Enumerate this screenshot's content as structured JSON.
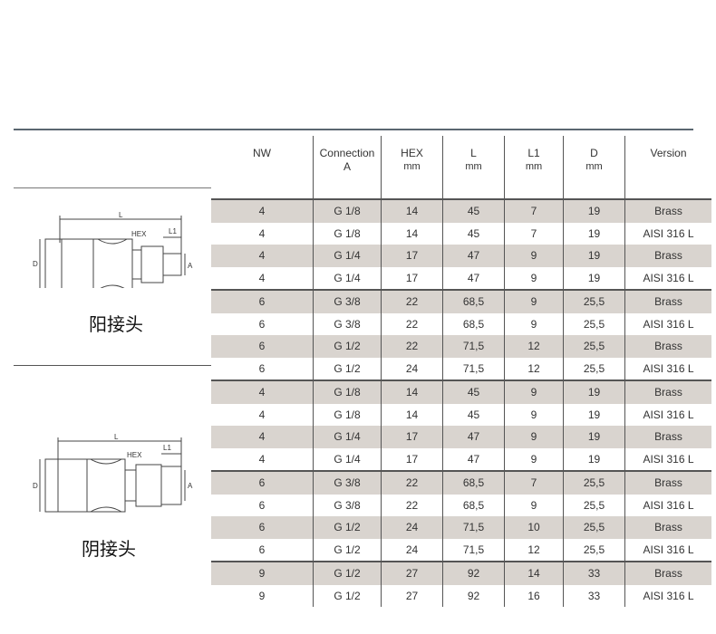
{
  "headers": [
    [
      "NW",
      ""
    ],
    [
      "Connection",
      "A"
    ],
    [
      "HEX",
      "mm"
    ],
    [
      "L",
      "mm"
    ],
    [
      "L1",
      "mm"
    ],
    [
      "D",
      "mm"
    ],
    [
      "Version",
      ""
    ]
  ],
  "sections": [
    {
      "label": "阳接头",
      "diagram_labels": {
        "L": "L",
        "HEX": "HEX",
        "L1": "L1",
        "D": "D",
        "A": "A"
      },
      "rows": [
        [
          "4",
          "G 1/8",
          "14",
          "45",
          "7",
          "19",
          "Brass"
        ],
        [
          "4",
          "G 1/8",
          "14",
          "45",
          "7",
          "19",
          "AISI 316 L"
        ],
        [
          "4",
          "G 1/4",
          "17",
          "47",
          "9",
          "19",
          "Brass"
        ],
        [
          "4",
          "G 1/4",
          "17",
          "47",
          "9",
          "19",
          "AISI 316 L"
        ],
        [
          "6",
          "G 3/8",
          "22",
          "68,5",
          "9",
          "25,5",
          "Brass"
        ],
        [
          "6",
          "G 3/8",
          "22",
          "68,5",
          "9",
          "25,5",
          "AISI 316 L"
        ],
        [
          "6",
          "G 1/2",
          "22",
          "71,5",
          "12",
          "25,5",
          "Brass"
        ],
        [
          "6",
          "G 1/2",
          "24",
          "71,5",
          "12",
          "25,5",
          "AISI 316 L"
        ]
      ]
    },
    {
      "label": "阴接头",
      "diagram_labels": {
        "L": "L",
        "HEX": "HEX",
        "L1": "L1",
        "D": "D",
        "A": "A"
      },
      "rows": [
        [
          "4",
          "G 1/8",
          "14",
          "45",
          "9",
          "19",
          "Brass"
        ],
        [
          "4",
          "G 1/8",
          "14",
          "45",
          "9",
          "19",
          "AISI 316 L"
        ],
        [
          "4",
          "G 1/4",
          "17",
          "47",
          "9",
          "19",
          "Brass"
        ],
        [
          "4",
          "G 1/4",
          "17",
          "47",
          "9",
          "19",
          "AISI 316 L"
        ],
        [
          "6",
          "G 3/8",
          "22",
          "68,5",
          "7",
          "25,5",
          "Brass"
        ],
        [
          "6",
          "G 3/8",
          "22",
          "68,5",
          "9",
          "25,5",
          "AISI 316 L"
        ],
        [
          "6",
          "G 1/2",
          "24",
          "71,5",
          "10",
          "25,5",
          "Brass"
        ],
        [
          "6",
          "G 1/2",
          "24",
          "71,5",
          "12",
          "25,5",
          "AISI 316 L"
        ],
        [
          "9",
          "G 1/2",
          "27",
          "92",
          "14",
          "33",
          "Brass"
        ],
        [
          "9",
          "G 1/2",
          "27",
          "92",
          "16",
          "33",
          "AISI 316 L"
        ]
      ]
    }
  ],
  "colors": {
    "shade": "#d9d4cf",
    "rule": "#5a6670"
  }
}
